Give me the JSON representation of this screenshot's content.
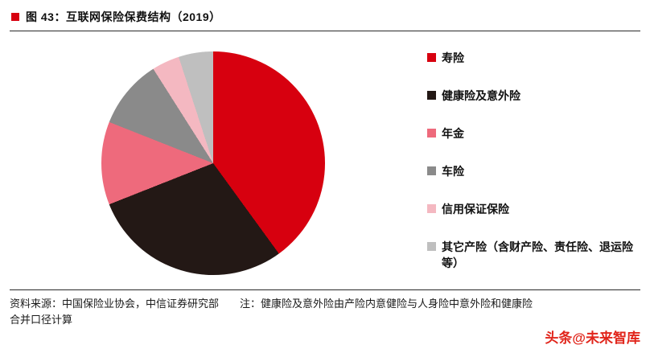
{
  "header": {
    "title": "图 43：互联网保险保费结构（2019）"
  },
  "chart_data": {
    "type": "pie",
    "title": "互联网保险保费结构（2019）",
    "labels": [
      "寿险",
      "健康险及意外险",
      "年金",
      "车险",
      "信用保证保险",
      "其它产险（含财产险、责任险、退运险等）"
    ],
    "values": [
      40,
      29,
      12,
      10,
      4,
      5
    ],
    "units": "%",
    "colors": [
      "#d7000f",
      "#231815",
      "#ee6a7c",
      "#8a8a8a",
      "#f4b8c1",
      "#bfbfbf"
    ],
    "legend_position": "right",
    "start_angle_deg": 0,
    "direction": "clockwise"
  },
  "footer": {
    "source_line1": "资料来源：中国保险业协会，中信证券研究部　　注：健康险及意外险由产险内意健险与人身险中意外险和健康险",
    "source_line2": "合并口径计算",
    "watermark": "头条@未来智库"
  }
}
